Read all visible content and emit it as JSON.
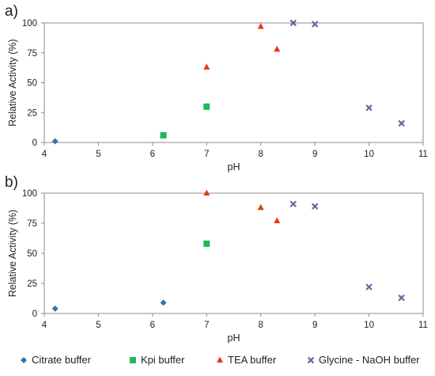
{
  "chart_data": [
    {
      "type": "scatter",
      "panel_label": "a)",
      "xlabel": "pH",
      "ylabel": "Relative Activity (%)",
      "xlim": [
        4,
        11
      ],
      "ylim": [
        0,
        100
      ],
      "xticks": [
        "4",
        "5",
        "6",
        "7",
        "8",
        "9",
        "10",
        "11"
      ],
      "yticks": [
        "0",
        "25",
        "50",
        "75",
        "100"
      ],
      "grid": false,
      "series": [
        {
          "name": "Citrate buffer",
          "x": [
            4.2
          ],
          "y": [
            1
          ]
        },
        {
          "name": "Kpi buffer",
          "x": [
            6.2,
            7.0
          ],
          "y": [
            6,
            30
          ]
        },
        {
          "name": "TEA buffer",
          "x": [
            7.0,
            8.0,
            8.3
          ],
          "y": [
            63,
            97,
            78
          ]
        },
        {
          "name": "Glycine - NaOH buffer",
          "x": [
            8.6,
            9.0,
            10.0,
            10.6
          ],
          "y": [
            100,
            99,
            29,
            16
          ]
        }
      ]
    },
    {
      "type": "scatter",
      "panel_label": "b)",
      "xlabel": "pH",
      "ylabel": "Relative Activity (%)",
      "xlim": [
        4,
        11
      ],
      "ylim": [
        0,
        100
      ],
      "xticks": [
        "4",
        "5",
        "6",
        "7",
        "8",
        "9",
        "10",
        "11"
      ],
      "yticks": [
        "0",
        "25",
        "50",
        "75",
        "100"
      ],
      "grid": false,
      "series": [
        {
          "name": "Citrate buffer",
          "x": [
            4.2,
            6.2
          ],
          "y": [
            4,
            9
          ]
        },
        {
          "name": "Kpi buffer",
          "x": [
            7.0
          ],
          "y": [
            58
          ]
        },
        {
          "name": "TEA buffer",
          "x": [
            7.0,
            8.0,
            8.3
          ],
          "y": [
            100,
            88,
            77
          ]
        },
        {
          "name": "Glycine - NaOH buffer",
          "x": [
            8.6,
            9.0,
            10.0,
            10.6
          ],
          "y": [
            91,
            89,
            22,
            13
          ]
        }
      ]
    }
  ],
  "legend": {
    "placement": "bottom",
    "items": [
      {
        "label": "Citrate buffer",
        "marker": "diamond-icon",
        "color": "#2E75B6"
      },
      {
        "label": "Kpi buffer",
        "marker": "square-icon",
        "color": "#1DB954"
      },
      {
        "label": "TEA buffer",
        "marker": "triangle-icon",
        "color": "#E8380D"
      },
      {
        "label": "Glycine - NaOH buffer",
        "marker": "x-cross-icon",
        "color": "#7F5AA2"
      }
    ]
  }
}
